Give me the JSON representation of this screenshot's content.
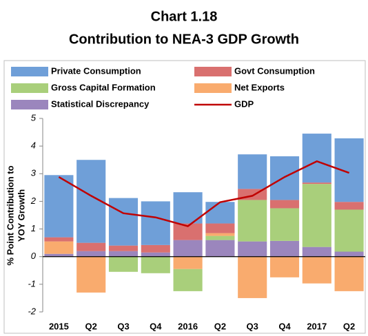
{
  "chart_data": {
    "type": "bar",
    "title": [
      "Chart 1.18",
      "Contribution to NEA-3 GDP Growth"
    ],
    "y_label": [
      "% Point Contribution to",
      "YOY Growth"
    ],
    "categories": [
      "2015",
      "Q2",
      "Q3",
      "Q4",
      "2016",
      "Q2",
      "Q3",
      "Q4",
      "2017",
      "Q2"
    ],
    "series": [
      {
        "name": "Statistical Discrepancy",
        "color": "#9b86bd",
        "values": [
          0.1,
          0.2,
          0.2,
          0.15,
          0.6,
          0.6,
          0.55,
          0.57,
          0.35,
          0.18
        ]
      },
      {
        "name": "Gross Capital Formation",
        "color": "#a9cf7b",
        "values": [
          0,
          0,
          -0.55,
          -0.6,
          -0.8,
          0.15,
          1.5,
          1.18,
          2.28,
          1.52
        ]
      },
      {
        "name": "Net Exports",
        "color": "#f9ab6e",
        "values": [
          0.45,
          -1.3,
          0,
          0,
          -0.45,
          0.1,
          -1.5,
          -0.75,
          -0.97,
          -1.25
        ]
      },
      {
        "name": "Govt Consumption",
        "color": "#d9706f",
        "values": [
          0.15,
          0.3,
          0.2,
          0.27,
          0.6,
          0.35,
          0.4,
          0.3,
          0.05,
          0.28
        ]
      },
      {
        "name": "Private Consumption",
        "color": "#6f9fd8",
        "values": [
          2.25,
          3.0,
          1.72,
          1.58,
          1.13,
          0.78,
          1.25,
          1.58,
          1.77,
          2.3
        ]
      }
    ],
    "line": {
      "name": "GDP",
      "color": "#c00000",
      "values": [
        2.88,
        2.2,
        1.57,
        1.42,
        1.1,
        1.97,
        2.2,
        2.88,
        3.45,
        3.03
      ]
    },
    "ylim": [
      -2,
      5
    ],
    "yticks": [
      -2,
      -1,
      0,
      1,
      2,
      3,
      4,
      5
    ],
    "grid": false
  }
}
